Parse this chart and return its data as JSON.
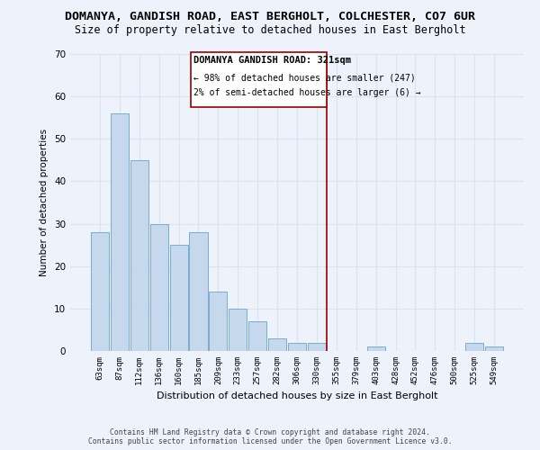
{
  "title": "DOMANYA, GANDISH ROAD, EAST BERGHOLT, COLCHESTER, CO7 6UR",
  "subtitle": "Size of property relative to detached houses in East Bergholt",
  "xlabel": "Distribution of detached houses by size in East Bergholt",
  "ylabel": "Number of detached properties",
  "bar_labels": [
    "63sqm",
    "87sqm",
    "112sqm",
    "136sqm",
    "160sqm",
    "185sqm",
    "209sqm",
    "233sqm",
    "257sqm",
    "282sqm",
    "306sqm",
    "330sqm",
    "355sqm",
    "379sqm",
    "403sqm",
    "428sqm",
    "452sqm",
    "476sqm",
    "500sqm",
    "525sqm",
    "549sqm"
  ],
  "bar_values": [
    28,
    56,
    45,
    30,
    25,
    28,
    14,
    10,
    7,
    3,
    2,
    2,
    0,
    0,
    1,
    0,
    0,
    0,
    0,
    2,
    1
  ],
  "bar_color": "#c6d9ec",
  "bar_edgecolor": "#7aadd4",
  "ylim": [
    0,
    70
  ],
  "yticks": [
    0,
    10,
    20,
    30,
    40,
    50,
    60,
    70
  ],
  "reference_line_x": 11.5,
  "reference_line_label": "DOMANYA GANDISH ROAD: 321sqm",
  "annotation_line1": "← 98% of detached houses are smaller (247)",
  "annotation_line2": "2% of semi-detached houses are larger (6) →",
  "ref_line_color": "#990000",
  "footer_line1": "Contains HM Land Registry data © Crown copyright and database right 2024.",
  "footer_line2": "Contains public sector information licensed under the Open Government Licence v3.0.",
  "background_color": "#eef2fa",
  "grid_color": "#d8e4f0",
  "title_fontsize": 9.5,
  "subtitle_fontsize": 8.5
}
